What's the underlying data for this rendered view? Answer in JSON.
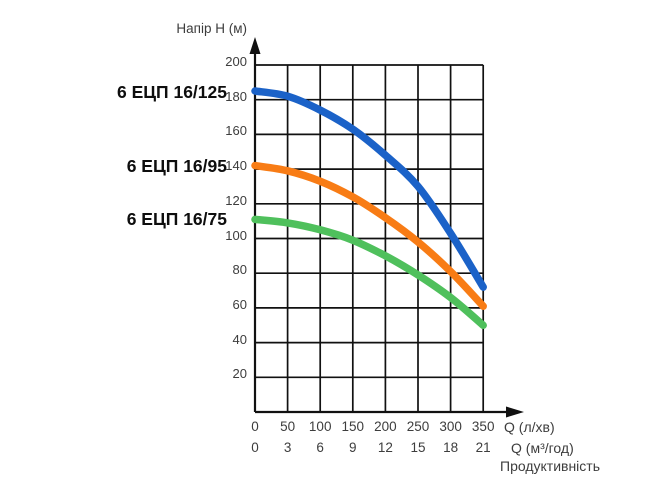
{
  "chart_data": {
    "type": "line",
    "title": "Напір H (м)",
    "xlabel_primary": "Q (л/хв)",
    "xlabel_secondary": "Q (м³/год)",
    "xlabel_caption": "Продуктивність",
    "x_primary_ticks": [
      "0",
      "50",
      "100",
      "150",
      "200",
      "250",
      "300",
      "350"
    ],
    "x_secondary_ticks": [
      "0",
      "3",
      "6",
      "9",
      "12",
      "15",
      "18",
      "21"
    ],
    "yticks": [
      "200",
      "180",
      "160",
      "140",
      "120",
      "100",
      "80",
      "60",
      "40",
      "20"
    ],
    "ylim": [
      0,
      200
    ],
    "xlim": [
      0,
      350
    ],
    "grid": true,
    "legend_position": "left-of-curves",
    "x": [
      0,
      50,
      100,
      150,
      200,
      250,
      300,
      350
    ],
    "series": [
      {
        "name": "6 ЕЦП 16/125",
        "color": "#1b62c8",
        "values": [
          185,
          182,
          174,
          163,
          148,
          130,
          103,
          72
        ]
      },
      {
        "name": "6 ЕЦП 16/95",
        "color": "#f87c15",
        "values": [
          142,
          139,
          133,
          124,
          112,
          98,
          81,
          61
        ]
      },
      {
        "name": "6 ЕЦП 16/75",
        "color": "#4fc05c",
        "values": [
          111,
          109,
          105,
          99,
          90,
          79,
          66,
          50
        ]
      }
    ],
    "axis_color": "#111111",
    "tick_text_color": "#3d3d3d"
  }
}
